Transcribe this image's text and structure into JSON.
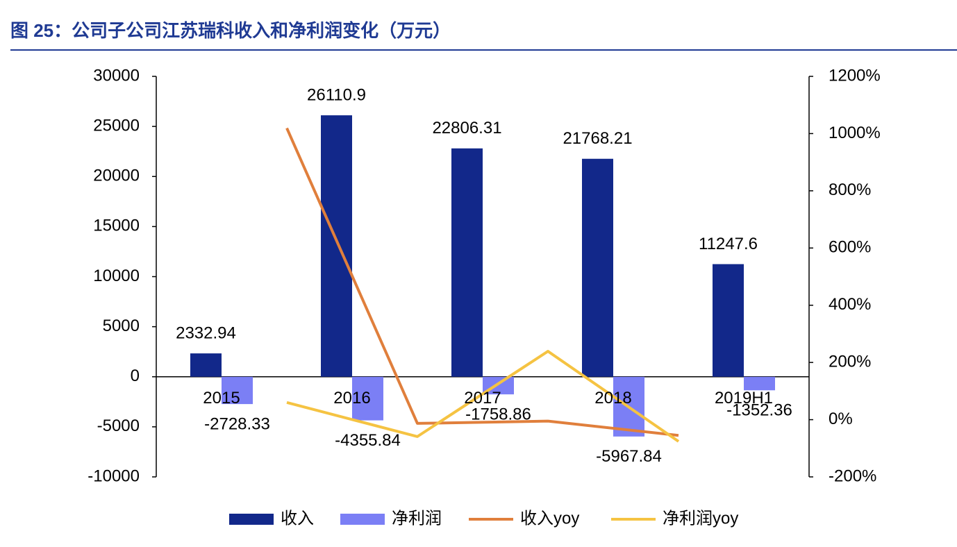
{
  "chart_data": {
    "type": "bar",
    "title": "图 25：公司子公司江苏瑞科收入和净利润变化（万元）",
    "categories": [
      "2015",
      "2016",
      "2017",
      "2018",
      "2019H1"
    ],
    "series": [
      {
        "name": "收入",
        "color": "#12288a",
        "type": "bar",
        "values": [
          2332.94,
          26110.9,
          22806.31,
          21768.21,
          11247.6
        ]
      },
      {
        "name": "净利润",
        "color": "#7b7ff5",
        "type": "bar",
        "values": [
          -2728.33,
          -4355.84,
          -1758.86,
          -5967.84,
          -1352.36
        ]
      },
      {
        "name": "收入yoy",
        "color": "#e07f3c",
        "type": "line",
        "axis": "y2",
        "values": [
          null,
          1019,
          -13,
          -5,
          -55
        ]
      },
      {
        "name": "净利润yoy",
        "color": "#f5c342",
        "type": "line",
        "axis": "y2",
        "values": [
          null,
          60,
          -59,
          239,
          -76
        ]
      }
    ],
    "ylim": [
      -10000,
      30000
    ],
    "yticks": [
      -10000,
      -5000,
      0,
      5000,
      10000,
      15000,
      20000,
      25000,
      30000
    ],
    "y2lim": [
      -200,
      1200
    ],
    "y2ticks": [
      {
        "value": -200,
        "label": "-200%"
      },
      {
        "value": 0,
        "label": "0%"
      },
      {
        "value": 200,
        "label": "200%"
      },
      {
        "value": 400,
        "label": "400%"
      },
      {
        "value": 600,
        "label": "600%"
      },
      {
        "value": 800,
        "label": "800%"
      },
      {
        "value": 1000,
        "label": "1000%"
      },
      {
        "value": 1200,
        "label": "1200%"
      }
    ]
  }
}
